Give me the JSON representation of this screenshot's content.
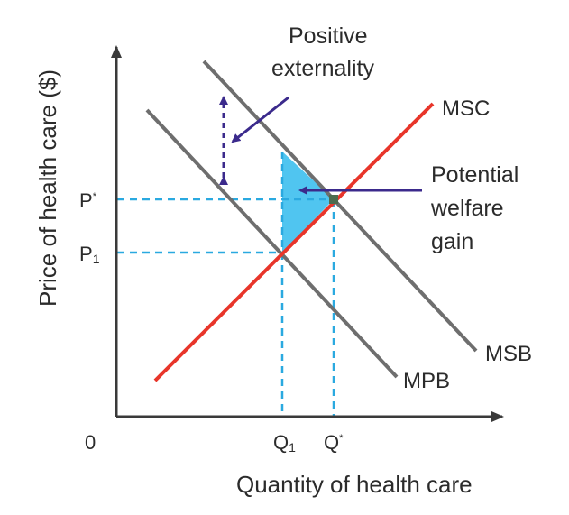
{
  "diagram": {
    "origin_label": "0",
    "x_axis_title": "Quantity of health care",
    "y_axis_title": "Price of health care ($)",
    "price_labels": {
      "p_star": {
        "base": "P",
        "mark": "*"
      },
      "p1": {
        "base": "P",
        "mark": "1"
      }
    },
    "quantity_labels": {
      "q1": {
        "base": "Q",
        "mark": "1"
      },
      "q_star": {
        "base": "Q",
        "mark": "*"
      }
    },
    "curves": {
      "msc": "MSC",
      "msb": "MSB",
      "mpb": "MPB"
    },
    "annotations": {
      "positive_externality": [
        "Positive",
        "externality"
      ],
      "welfare_gain": [
        "Potential",
        "welfare",
        "gain"
      ]
    },
    "colors": {
      "supply_curve": "#e8352a",
      "benefit_curves": "#6e6e6e",
      "axes": "#3a3a3a",
      "guides": "#2aa9e0",
      "welfare_area": "#3dbfee",
      "arrows": "#3b2a8c"
    }
  }
}
